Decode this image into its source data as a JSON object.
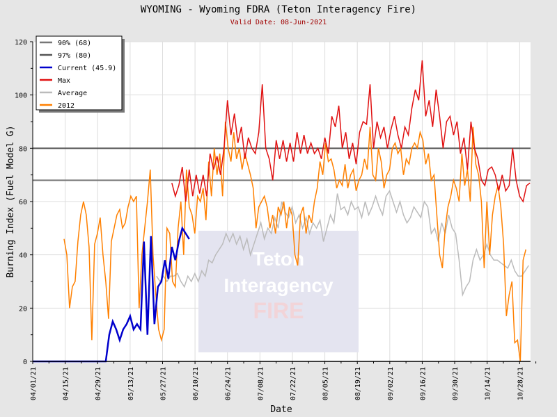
{
  "chart_data": {
    "type": "line",
    "title": "WYOMING - Wyoming FDRA (Teton Interagency Fire)",
    "subtitle": "Valid Date: 08-Jun-2021",
    "xlabel": "Date",
    "ylabel": "Burning Index (Fuel Model G)",
    "ylim": [
      0,
      120
    ],
    "yticks": [
      "0",
      "20",
      "40",
      "60",
      "80",
      "100",
      "120"
    ],
    "x_unit": "days since 04/01/21",
    "xlim": [
      0,
      215
    ],
    "xticks": [
      "04/01/21",
      "04/15/21",
      "04/29/21",
      "05/13/21",
      "05/27/21",
      "06/10/21",
      "06/24/21",
      "07/08/21",
      "07/22/21",
      "08/05/21",
      "08/19/21",
      "09/02/21",
      "09/16/21",
      "09/30/21",
      "10/14/21",
      "10/28/21"
    ],
    "grid": true,
    "legend_position": "top-left",
    "watermark": [
      "Teton",
      "Interagency",
      "FIRE"
    ],
    "thresholds": [
      {
        "name": "90% (68)",
        "value": 68,
        "color": "#777777"
      },
      {
        "name": "97% (80)",
        "value": 80,
        "color": "#555555"
      }
    ],
    "series": [
      {
        "name": "Current (45.9)",
        "color": "#0000cc",
        "start_day": 0,
        "step_days": 1.5,
        "values": [
          0,
          0,
          0,
          0,
          0,
          0,
          0,
          0,
          0,
          0,
          0,
          0,
          0,
          0,
          0,
          0,
          0,
          0,
          0,
          0,
          0,
          0,
          10,
          15,
          12,
          8,
          12,
          14,
          17,
          12,
          14,
          12,
          45,
          10,
          47,
          14,
          28,
          30,
          38,
          31,
          43,
          38,
          45,
          50,
          48,
          45.9
        ]
      },
      {
        "name": "Max",
        "color": "#e01010",
        "start_day": 60,
        "step_days": 1.5,
        "values": [
          67,
          62,
          66,
          73,
          60,
          72,
          62,
          70,
          63,
          70,
          62,
          78,
          72,
          77,
          70,
          80,
          98,
          85,
          93,
          82,
          88,
          76,
          84,
          80,
          78,
          86,
          104,
          80,
          76,
          68,
          83,
          76,
          83,
          75,
          82,
          75,
          86,
          78,
          85,
          78,
          82,
          78,
          80,
          76,
          84,
          78,
          92,
          88,
          96,
          80,
          86,
          76,
          82,
          74,
          86,
          90,
          89,
          104,
          80,
          90,
          84,
          88,
          80,
          87,
          92,
          85,
          80,
          88,
          85,
          95,
          102,
          98,
          113,
          92,
          98,
          88,
          102,
          92,
          80,
          90,
          92,
          85,
          90,
          78,
          84,
          72,
          90,
          80,
          76,
          68,
          66,
          72,
          73,
          70,
          64,
          70,
          64,
          66,
          80,
          68,
          62,
          60,
          66,
          67
        ]
      },
      {
        "name": "Average",
        "color": "#bbbbbb",
        "start_day": 53.4,
        "step_days": 1.5,
        "values": [
          32,
          30,
          32,
          30,
          32,
          32,
          33,
          30,
          28,
          32,
          30,
          33,
          30,
          34,
          32,
          38,
          37,
          40,
          42,
          44,
          48,
          45,
          48,
          44,
          47,
          42,
          46,
          40,
          44,
          48,
          52,
          46,
          50,
          48,
          54,
          50,
          60,
          56,
          54,
          58,
          52,
          55,
          50,
          54,
          48,
          52,
          50,
          53,
          45,
          50,
          55,
          52,
          63,
          57,
          58,
          55,
          60,
          57,
          58,
          54,
          60,
          55,
          58,
          62,
          58,
          55,
          62,
          64,
          60,
          56,
          60,
          55,
          52,
          54,
          58,
          56,
          54,
          60,
          58,
          48,
          50,
          45,
          52,
          48,
          55,
          50,
          48,
          38,
          25,
          28,
          30,
          38,
          42,
          38,
          40,
          44,
          40,
          38,
          38,
          37,
          36,
          35,
          38,
          34,
          32,
          32,
          34,
          36
        ]
      },
      {
        "name": "2012",
        "color": "#ff8000",
        "start_day": 13.5,
        "step_days": 1.2,
        "values": [
          46,
          40,
          20,
          28,
          30,
          45,
          55,
          60,
          55,
          43,
          8,
          44,
          48,
          54,
          40,
          30,
          16,
          45,
          50,
          55,
          57,
          50,
          52,
          58,
          62,
          60,
          62,
          20,
          40,
          50,
          60,
          72,
          40,
          25,
          12,
          8,
          12,
          50,
          48,
          30,
          28,
          50,
          60,
          40,
          72,
          58,
          55,
          48,
          62,
          60,
          65,
          53,
          75,
          62,
          80,
          70,
          78,
          62,
          90,
          80,
          75,
          86,
          76,
          80,
          72,
          78,
          74,
          70,
          65,
          50,
          58,
          60,
          62,
          58,
          50,
          55,
          48,
          58,
          55,
          60,
          50,
          58,
          55,
          40,
          36,
          55,
          58,
          48,
          55,
          52,
          60,
          65,
          75,
          70,
          82,
          75,
          76,
          72,
          65,
          68,
          66,
          74,
          65,
          70,
          72,
          64,
          68,
          70,
          76,
          72,
          88,
          70,
          68,
          80,
          75,
          65,
          70,
          72,
          80,
          82,
          78,
          80,
          70,
          76,
          74,
          80,
          82,
          80,
          86,
          83,
          74,
          78,
          68,
          70,
          55,
          40,
          35,
          50,
          58,
          62,
          68,
          65,
          60,
          78,
          66,
          72,
          60,
          88,
          74,
          70,
          60,
          35,
          60,
          40,
          55,
          62,
          66,
          58,
          44,
          17,
          25,
          30,
          7,
          8,
          0,
          38,
          42
        ]
      }
    ]
  }
}
